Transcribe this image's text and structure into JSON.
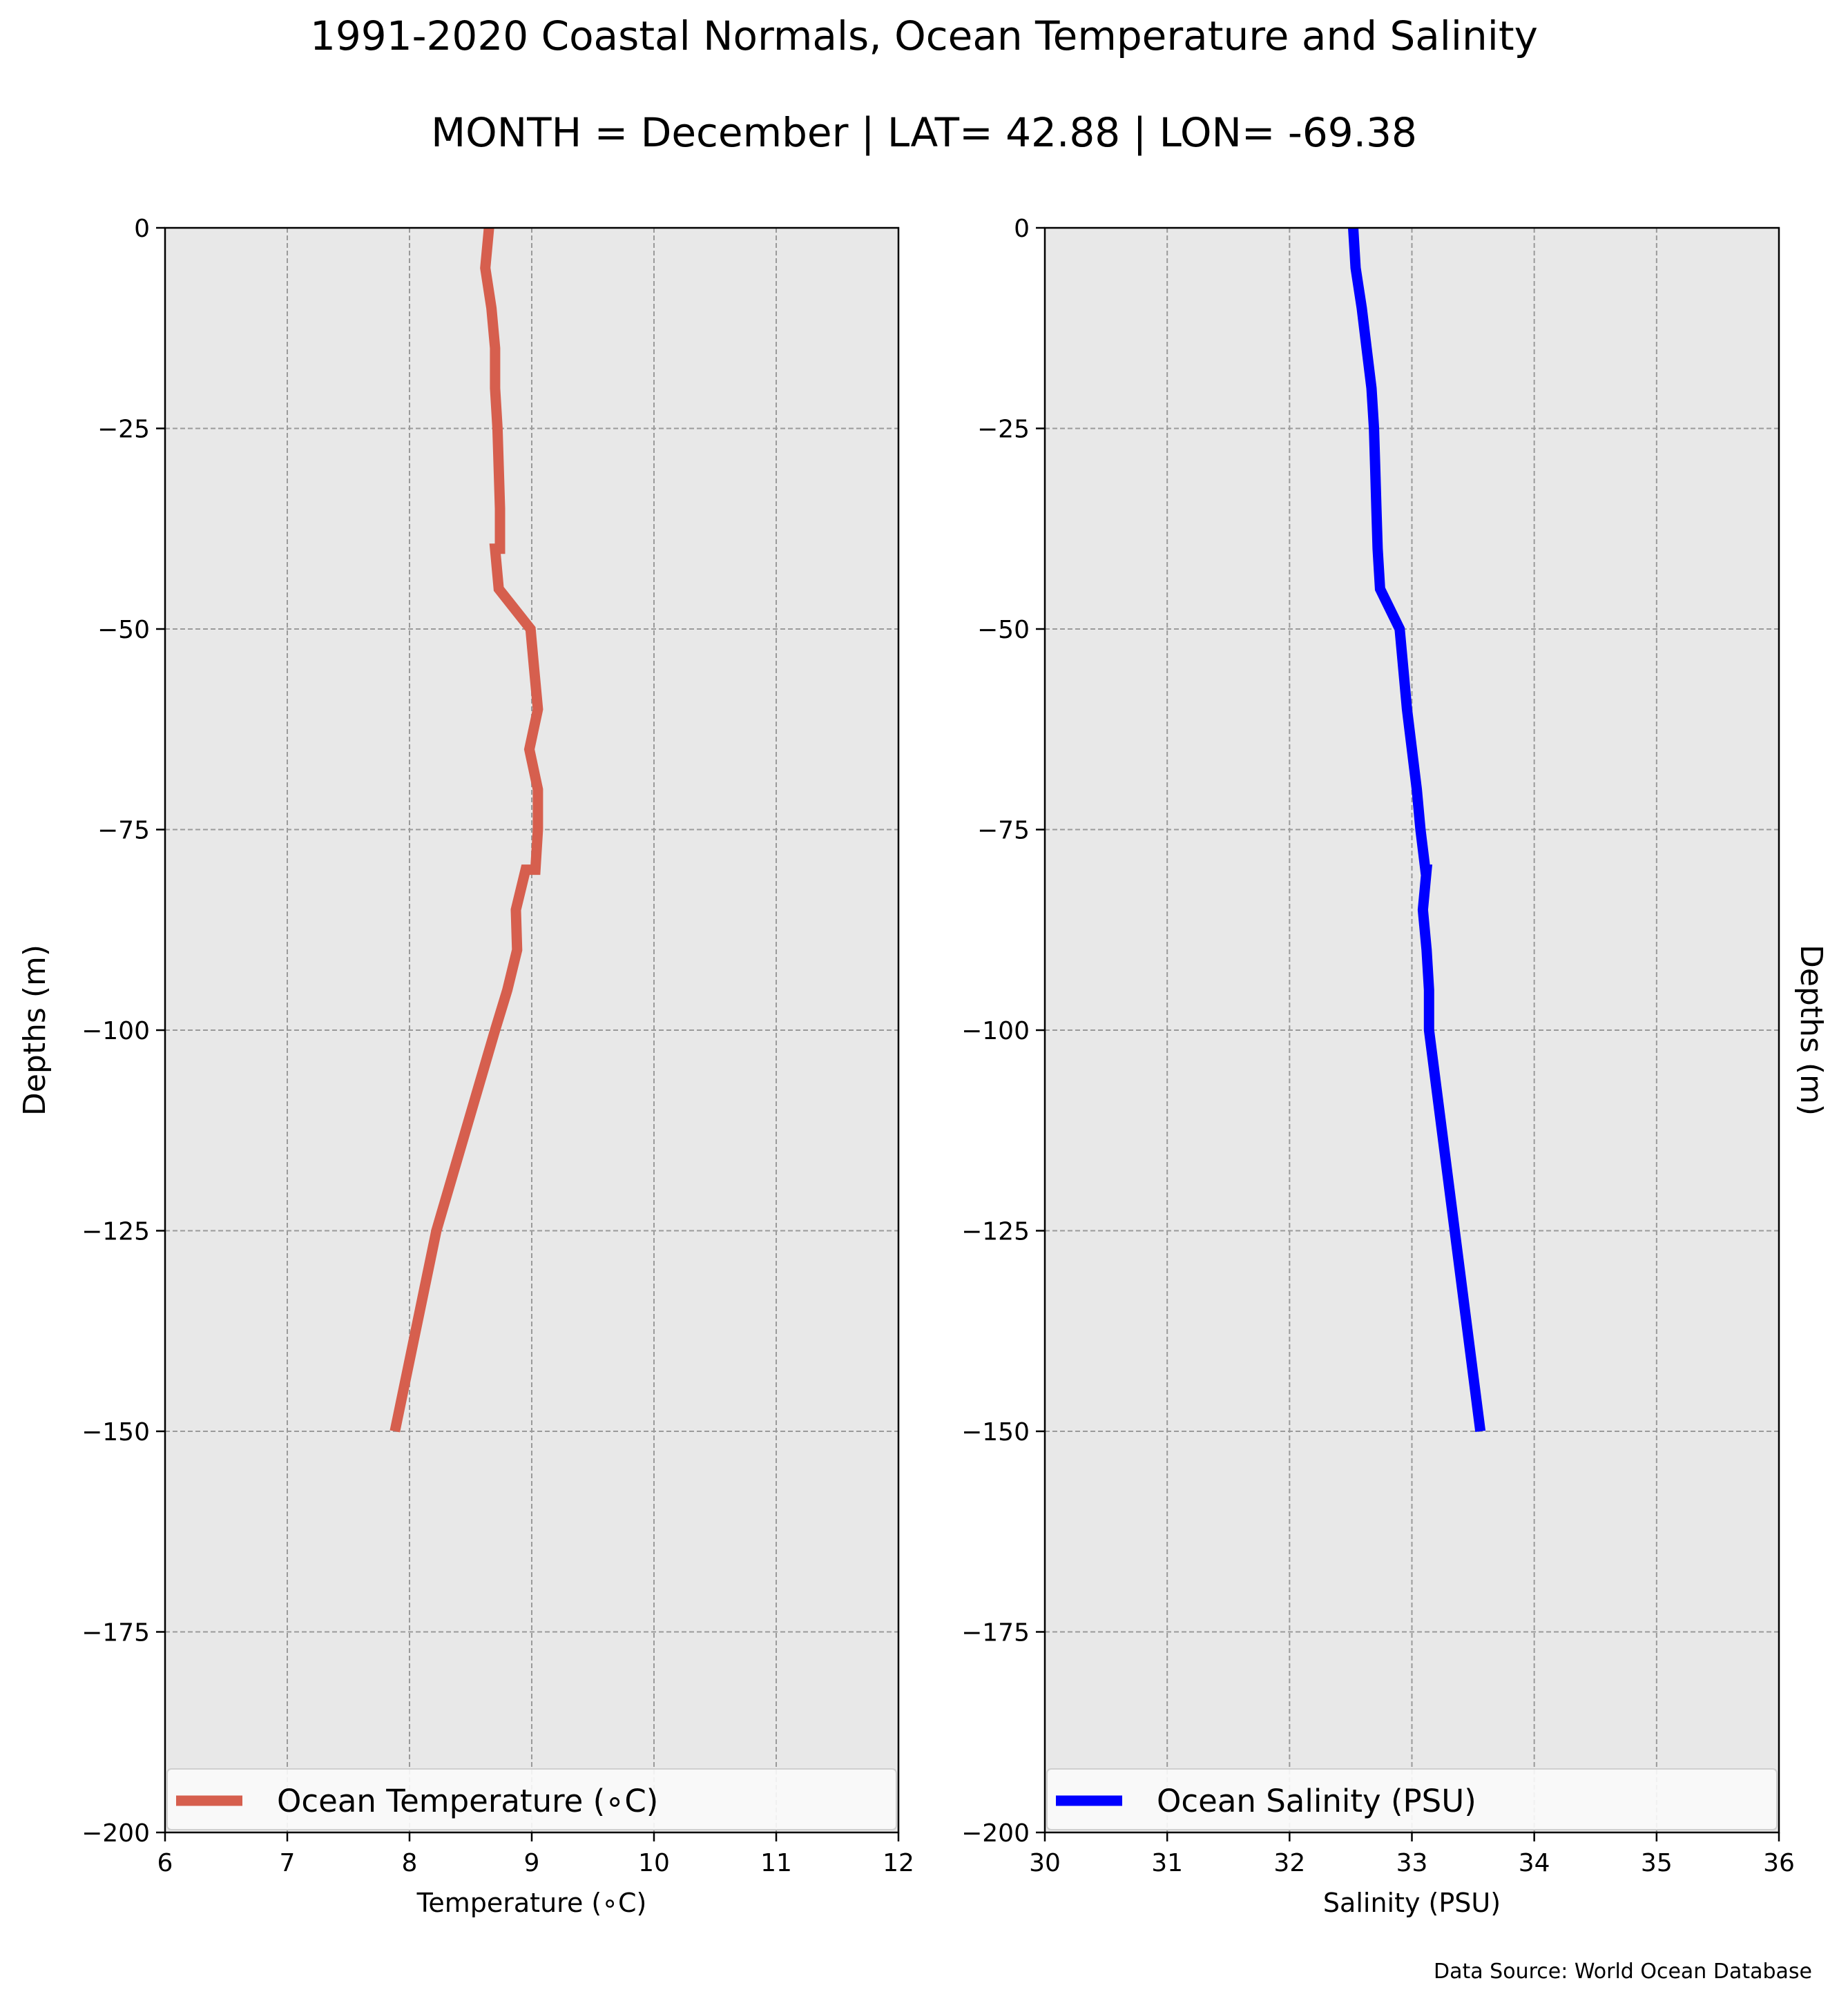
{
  "title": "1991-2020 Coastal Normals, Ocean Temperature and Salinity",
  "subtitle": "MONTH = December | LAT= 42.88 | LON= -69.38",
  "source": "Data Source: World Ocean Database",
  "chart_data": [
    {
      "type": "line",
      "xlabel": "Temperature (∘C)",
      "ylabel": "Depths (m)",
      "xlim": [
        6,
        12
      ],
      "ylim": [
        -200,
        0
      ],
      "xticks": [
        "6",
        "7",
        "8",
        "9",
        "10",
        "11",
        "12"
      ],
      "yticks": [
        "0",
        "−25",
        "−50",
        "−75",
        "−100",
        "−125",
        "−150",
        "−175",
        "−200"
      ],
      "grid": true,
      "legend_position": "lower-left",
      "series": [
        {
          "name": "Ocean Temperature (∘C)",
          "color": "#d65f4e",
          "x": [
            8.65,
            8.62,
            8.67,
            8.7,
            8.7,
            8.72,
            8.73,
            8.74,
            8.74,
            8.72,
            8.7,
            8.73,
            8.99,
            9.02,
            9.05,
            8.98,
            9.05,
            9.05,
            9.03,
            8.95,
            8.87,
            8.88,
            8.8,
            8.7,
            8.22,
            7.88
          ],
          "y": [
            0,
            -5,
            -10,
            -15,
            -20,
            -25,
            -30,
            -35,
            -40,
            -40,
            -40,
            -45,
            -50,
            -55,
            -60,
            -65,
            -70,
            -75,
            -80,
            -80,
            -85,
            -90,
            -95,
            -100,
            -125,
            -150
          ]
        }
      ]
    },
    {
      "type": "line",
      "xlabel": "Salinity (PSU)",
      "ylabel": "Depths (m)",
      "xlim": [
        30,
        36
      ],
      "ylim": [
        -200,
        0
      ],
      "xticks": [
        "30",
        "31",
        "32",
        "33",
        "34",
        "35",
        "36"
      ],
      "yticks": [
        "0",
        "−25",
        "−50",
        "−75",
        "−100",
        "−125",
        "−150",
        "−175",
        "−200"
      ],
      "grid": true,
      "legend_position": "lower-left",
      "series": [
        {
          "name": "Ocean Salinity (PSU)",
          "color": "#0000ff",
          "x": [
            32.52,
            32.54,
            32.59,
            32.63,
            32.67,
            32.69,
            32.7,
            32.71,
            32.72,
            32.72,
            32.72,
            32.74,
            32.9,
            32.93,
            32.96,
            33.0,
            33.04,
            33.07,
            33.11,
            33.12,
            33.09,
            33.12,
            33.14,
            33.14,
            33.35,
            33.56
          ],
          "y": [
            0,
            -5,
            -10,
            -15,
            -20,
            -25,
            -30,
            -35,
            -40,
            -40,
            -40,
            -45,
            -50,
            -55,
            -60,
            -65,
            -70,
            -75,
            -80,
            -80,
            -85,
            -90,
            -95,
            -100,
            -125,
            -150
          ]
        }
      ]
    }
  ]
}
